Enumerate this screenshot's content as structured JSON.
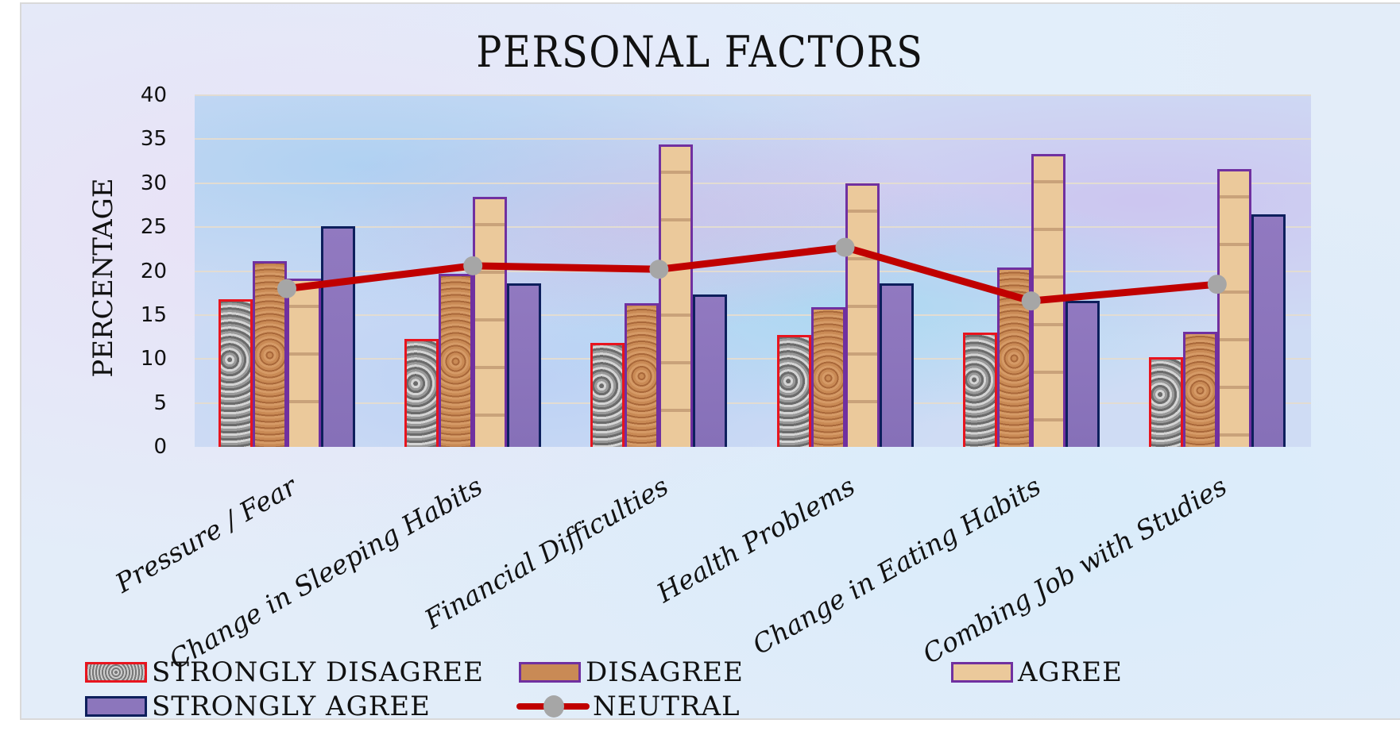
{
  "chart_data": {
    "type": "bar",
    "title": "PERSONAL FACTORS",
    "xlabel": "",
    "ylabel": "PERCENTAGE",
    "ylim": [
      0,
      40
    ],
    "yticks": [
      0,
      5,
      10,
      15,
      20,
      25,
      30,
      35,
      40
    ],
    "grid": true,
    "legend_position": "bottom",
    "categories": [
      "Pressure / Fear",
      "Change in Sleeping Habits",
      "Financial Difficulties",
      "Health Problems",
      "Change in Eating Habits",
      "Combing Job with Studies"
    ],
    "series": [
      {
        "name": "STRONGLY DISAGREE",
        "type": "bar",
        "values": [
          16.8,
          12.3,
          11.8,
          12.7,
          13.0,
          10.2
        ],
        "border_color": "#e8141e"
      },
      {
        "name": "DISAGREE",
        "type": "bar",
        "values": [
          21.1,
          19.7,
          16.3,
          15.9,
          20.4,
          13.1
        ],
        "border_color": "#7030a0"
      },
      {
        "name": "AGREE",
        "type": "bar",
        "values": [
          19.1,
          28.4,
          34.4,
          30.0,
          33.3,
          31.6
        ],
        "border_color": "#7030a0"
      },
      {
        "name": "STRONGLY AGREE",
        "type": "bar",
        "values": [
          25.1,
          18.6,
          17.3,
          18.6,
          16.6,
          26.5
        ],
        "border_color": "#0d1f5c"
      },
      {
        "name": "NEUTRAL",
        "type": "line",
        "values": [
          18.0,
          20.6,
          20.2,
          22.7,
          16.6,
          18.5
        ],
        "color": "#c00000",
        "marker_color": "#a6a6a6"
      }
    ]
  },
  "legend": {
    "items": [
      "STRONGLY DISAGREE",
      "DISAGREE",
      "AGREE",
      "STRONGLY AGREE",
      "NEUTRAL"
    ]
  }
}
